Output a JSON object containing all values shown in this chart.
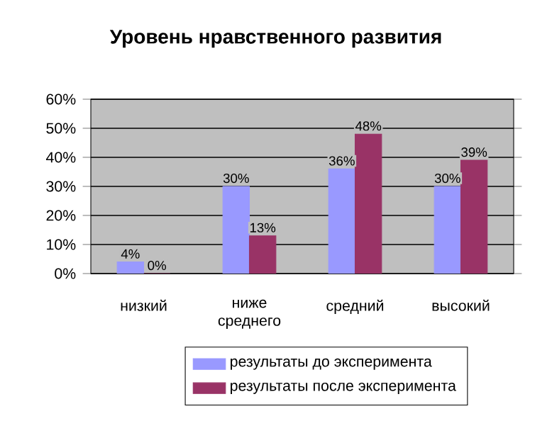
{
  "chart_data": {
    "type": "bar",
    "title": "Уровень нравственного развития",
    "categories": [
      "низкий",
      "ниже среднего",
      "средний",
      "высокий"
    ],
    "series": [
      {
        "name": "результаты до эксперимента",
        "color": "#9999ff",
        "values": [
          4,
          30,
          36,
          30
        ],
        "value_labels": [
          "4%",
          "30%",
          "36%",
          "30%"
        ]
      },
      {
        "name": "результаты после эксперимента",
        "color": "#993366",
        "values": [
          0,
          13,
          48,
          39
        ],
        "value_labels": [
          "0%",
          "13%",
          "48%",
          "39%"
        ]
      }
    ],
    "ylim": [
      0,
      60
    ],
    "yticks": [
      {
        "value": 0,
        "label": "0%"
      },
      {
        "value": 10,
        "label": "10%"
      },
      {
        "value": 20,
        "label": "20%"
      },
      {
        "value": 30,
        "label": "30%"
      },
      {
        "value": 40,
        "label": "40%"
      },
      {
        "value": 50,
        "label": "50%"
      },
      {
        "value": 60,
        "label": "60%"
      }
    ],
    "grid": "y",
    "legend": "bottom"
  }
}
